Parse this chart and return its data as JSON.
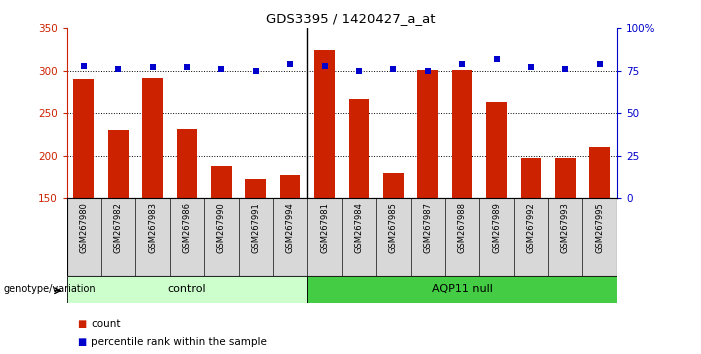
{
  "title": "GDS3395 / 1420427_a_at",
  "samples": [
    "GSM267980",
    "GSM267982",
    "GSM267983",
    "GSM267986",
    "GSM267990",
    "GSM267991",
    "GSM267994",
    "GSM267981",
    "GSM267984",
    "GSM267985",
    "GSM267987",
    "GSM267988",
    "GSM267989",
    "GSM267992",
    "GSM267993",
    "GSM267995"
  ],
  "counts": [
    290,
    230,
    292,
    232,
    188,
    173,
    177,
    325,
    267,
    180,
    301,
    301,
    263,
    197,
    197,
    210
  ],
  "percentile_ranks": [
    78,
    76,
    77,
    77,
    76,
    75,
    79,
    78,
    75,
    76,
    75,
    79,
    82,
    77,
    76,
    79
  ],
  "n_control": 7,
  "n_aqp11": 9,
  "bar_color": "#cc2200",
  "dot_color": "#0000cc",
  "control_bg": "#ccffcc",
  "aqp11_bg": "#44cc44",
  "ylim_left": [
    150,
    350
  ],
  "ylim_right": [
    0,
    100
  ],
  "yticks_left": [
    150,
    200,
    250,
    300,
    350
  ],
  "yticks_right": [
    0,
    25,
    50,
    75,
    100
  ],
  "yticklabels_right": [
    "0",
    "25",
    "50",
    "75",
    "100%"
  ],
  "grid_lines": [
    200,
    250,
    300
  ],
  "bar_width": 0.6,
  "background_color": "#ffffff",
  "plot_bg": "#ffffff",
  "ticklabel_bg": "#d8d8d8",
  "legend_count_color": "#cc2200",
  "legend_dot_color": "#0000cc",
  "genotype_label": "genotype/variation",
  "control_label": "control",
  "aqp11_label": "AQP11 null"
}
